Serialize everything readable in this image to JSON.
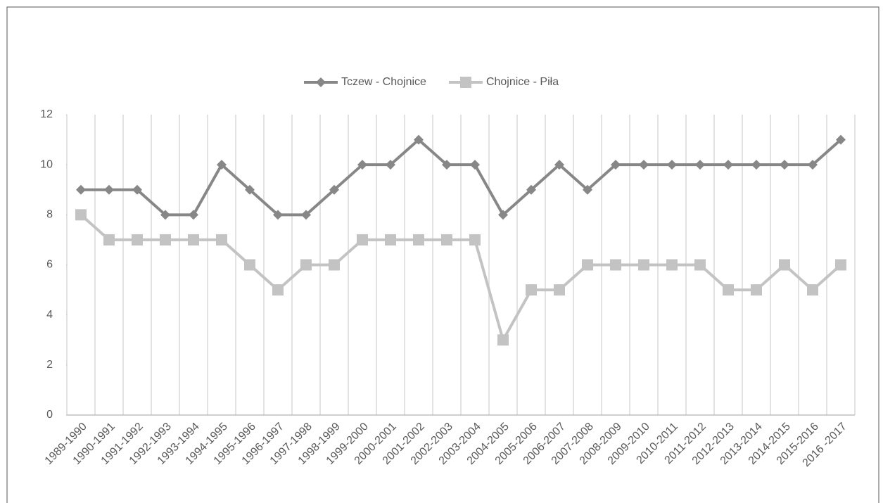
{
  "chart_data": {
    "type": "line",
    "categories": [
      "1989-1990",
      "1990-1991",
      "1991-1992",
      "1992-1993",
      "1993-1994",
      "1994-1995",
      "1995-1996",
      "1996-1997",
      "1997-1998",
      "1998-1999",
      "1999-2000",
      "2000-2001",
      "2001-2002",
      "2002-2003",
      "2003-2004",
      "2004-2005",
      "2005-2006",
      "2006-2007",
      "2007-2008",
      "2008-2009",
      "2009-2010",
      "2010-2011",
      "2011-2012",
      "2012-2013",
      "2013-2014",
      "2014-2015",
      "2015-2016",
      "2016 -2017"
    ],
    "series": [
      {
        "name": "Tczew - Chojnice",
        "color": "#878787",
        "marker": "diamond",
        "values": [
          9,
          9,
          9,
          8,
          8,
          10,
          9,
          8,
          8,
          9,
          10,
          10,
          11,
          10,
          10,
          8,
          9,
          10,
          9,
          10,
          10,
          10,
          10,
          10,
          10,
          10,
          10,
          11
        ]
      },
      {
        "name": "Chojnice - Piła",
        "color": "#c3c3c3",
        "marker": "square",
        "values": [
          8,
          7,
          7,
          7,
          7,
          7,
          6,
          5,
          6,
          6,
          7,
          7,
          7,
          7,
          7,
          3,
          5,
          5,
          6,
          6,
          6,
          6,
          6,
          5,
          5,
          6,
          5,
          6
        ]
      }
    ],
    "ylim": [
      0,
      12
    ],
    "yticks": [
      0,
      2,
      4,
      6,
      8,
      10,
      12
    ],
    "legend": "top"
  }
}
